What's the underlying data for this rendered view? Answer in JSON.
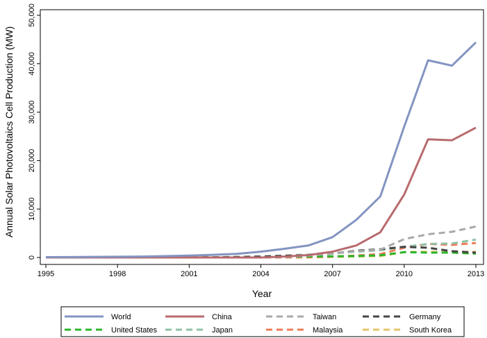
{
  "chart_data": {
    "type": "line",
    "xlabel": "Year",
    "ylabel": "Annual Solar Photovoltaics Cell Production (MW)",
    "xlim": [
      1995,
      2013
    ],
    "ylim": [
      0,
      50000
    ],
    "xticks": [
      1995,
      1998,
      2001,
      2004,
      2007,
      2010,
      2013
    ],
    "yticks": [
      0,
      10000,
      20000,
      30000,
      40000,
      50000
    ],
    "ytick_labels": [
      "0",
      "10,000",
      "20,000",
      "30,000",
      "40,000",
      "50,000"
    ],
    "grid": false,
    "legend_position": "bottom",
    "x": [
      1995,
      1996,
      1997,
      1998,
      1999,
      2000,
      2001,
      2002,
      2003,
      2004,
      2005,
      2006,
      2007,
      2008,
      2009,
      2010,
      2011,
      2012,
      2013
    ],
    "series": [
      {
        "name": "World",
        "color": "#8394c1",
        "dashed": false,
        "values": [
          78,
          89,
          126,
          155,
          202,
          288,
          401,
          560,
          750,
          1200,
          1800,
          2500,
          4200,
          7800,
          12600,
          27000,
          40700,
          39600,
          44400
        ]
      },
      {
        "name": "China",
        "color": "#b86a6d",
        "dashed": false,
        "values": [
          0,
          0,
          0,
          0,
          0,
          0,
          0,
          0,
          0,
          0,
          200,
          500,
          1200,
          2500,
          5200,
          13000,
          24400,
          24200,
          26800
        ]
      },
      {
        "name": "Taiwan",
        "color": "#a9a9a9",
        "dashed": true,
        "values": [
          0,
          0,
          0,
          0,
          0,
          0,
          0,
          0,
          0,
          0,
          100,
          400,
          800,
          1300,
          1600,
          3800,
          4800,
          5300,
          6400
        ]
      },
      {
        "name": "Germany",
        "color": "#444444",
        "dashed": true,
        "values": [
          0,
          0,
          0,
          0,
          0,
          0,
          20,
          50,
          100,
          200,
          350,
          500,
          800,
          1400,
          1700,
          2200,
          2000,
          1300,
          1000
        ]
      },
      {
        "name": "United States",
        "color": "#2bb52b",
        "dashed": true,
        "values": [
          0,
          0,
          0,
          0,
          0,
          0,
          10,
          20,
          50,
          100,
          150,
          200,
          250,
          300,
          450,
          1100,
          1000,
          1000,
          800
        ]
      },
      {
        "name": "Japan",
        "color": "#8fc1a5",
        "dashed": true,
        "values": [
          0,
          0,
          0,
          0,
          0,
          0,
          20,
          50,
          100,
          200,
          400,
          600,
          900,
          1200,
          1500,
          2200,
          2800,
          2900,
          3700
        ]
      },
      {
        "name": "Malaysia",
        "color": "#ee7c57",
        "dashed": true,
        "values": [
          0,
          0,
          0,
          0,
          0,
          0,
          0,
          0,
          0,
          0,
          0,
          50,
          200,
          400,
          700,
          2000,
          2800,
          2600,
          3000
        ]
      },
      {
        "name": "South Korea",
        "color": "#e3c36b",
        "dashed": true,
        "values": [
          0,
          0,
          0,
          0,
          0,
          0,
          0,
          0,
          0,
          0,
          0,
          50,
          100,
          200,
          300,
          1100,
          1200,
          1100,
          1200
        ]
      }
    ]
  }
}
